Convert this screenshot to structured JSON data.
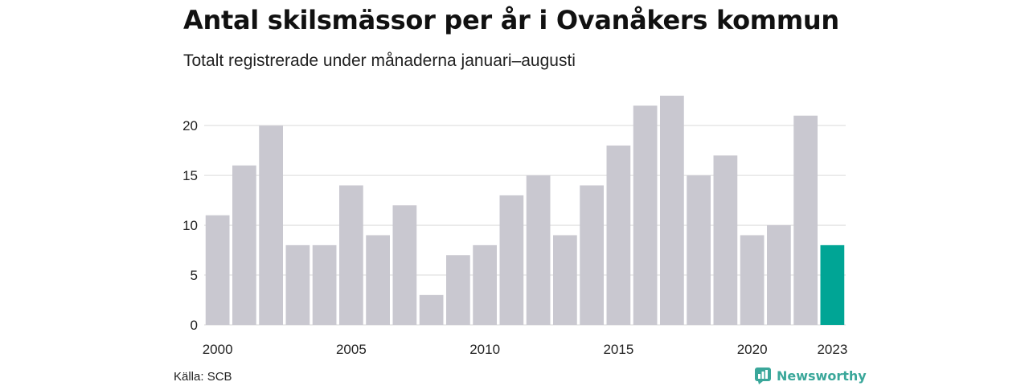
{
  "title": "Antal skilsmässor per år i Ovanåkers kommun",
  "subtitle": "Totalt registrerade under månaderna januari–augusti",
  "source": "Källa: SCB",
  "brand": {
    "name": "Newsworthy",
    "icon": "newsworthy-logo-icon",
    "color": "#3aa79a"
  },
  "chart_data": {
    "type": "bar",
    "x": [
      2000,
      2001,
      2002,
      2003,
      2004,
      2005,
      2006,
      2007,
      2008,
      2009,
      2010,
      2011,
      2012,
      2013,
      2014,
      2015,
      2016,
      2017,
      2018,
      2019,
      2020,
      2021,
      2022,
      2023
    ],
    "values": [
      11,
      16,
      20,
      8,
      8,
      14,
      9,
      12,
      3,
      7,
      8,
      13,
      15,
      9,
      14,
      18,
      22,
      23,
      15,
      17,
      9,
      10,
      21,
      8
    ],
    "ylim": [
      0,
      23
    ],
    "y_ticks": [
      0,
      5,
      10,
      15,
      20
    ],
    "x_tick_labels": [
      "2000",
      "2005",
      "2010",
      "2015",
      "2020",
      "2023"
    ],
    "colors": {
      "default": "#c9c8d0",
      "highlight": "#00a595",
      "grid": "#e6e6e6"
    },
    "highlight_index": 23,
    "grid": true
  }
}
